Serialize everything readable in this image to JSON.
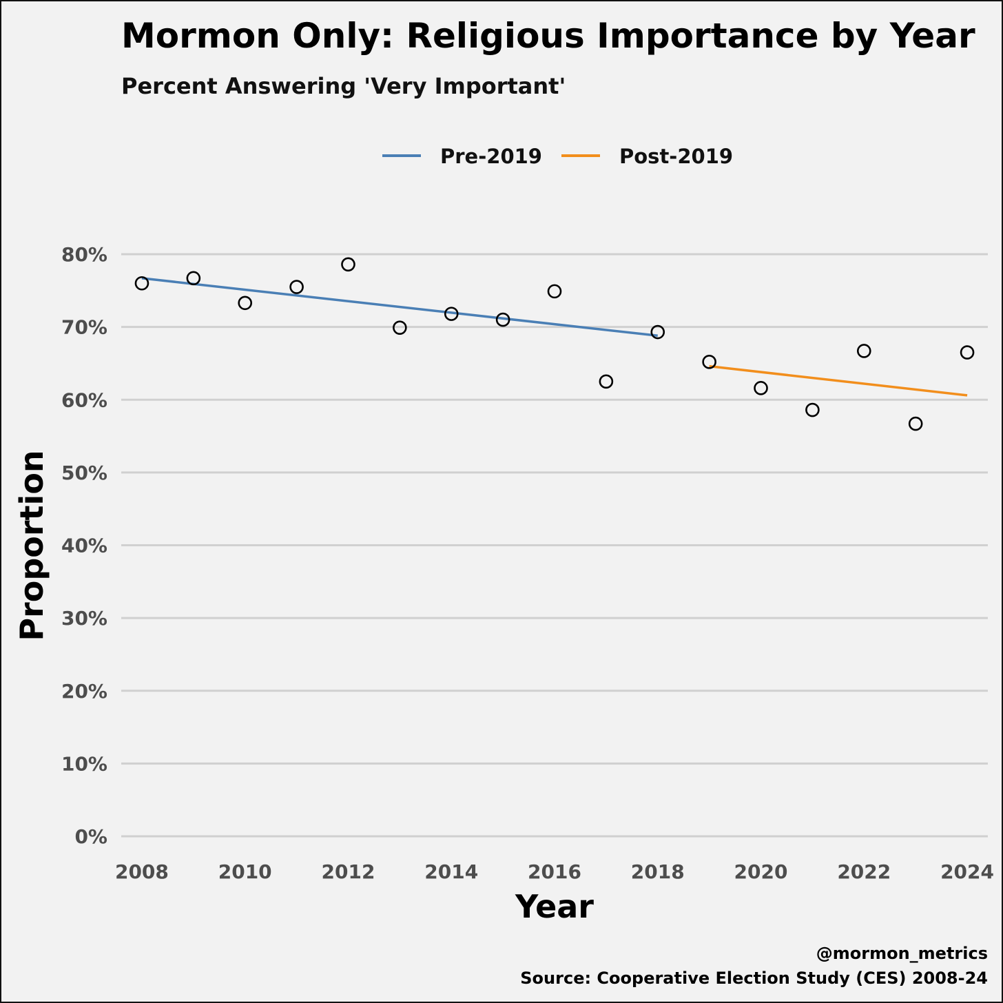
{
  "chart_data": {
    "type": "scatter",
    "title": "Mormon Only: Religious Importance by Year",
    "subtitle": "Percent Answering 'Very Important'",
    "xlabel": "Year",
    "ylabel": "Proportion",
    "xlim": [
      2007.6,
      2024.4
    ],
    "ylim": [
      0,
      0.8
    ],
    "x_ticks": [
      2008,
      2010,
      2012,
      2014,
      2016,
      2018,
      2020,
      2022,
      2024
    ],
    "y_ticks": [
      0,
      0.1,
      0.2,
      0.3,
      0.4,
      0.5,
      0.6,
      0.7,
      0.8
    ],
    "y_tick_labels": [
      "0%",
      "10%",
      "20%",
      "30%",
      "40%",
      "50%",
      "60%",
      "70%",
      "80%"
    ],
    "grid": true,
    "legend_position": "top",
    "points": [
      {
        "x": 2008,
        "y": 0.76
      },
      {
        "x": 2009,
        "y": 0.767
      },
      {
        "x": 2010,
        "y": 0.733
      },
      {
        "x": 2011,
        "y": 0.755
      },
      {
        "x": 2012,
        "y": 0.786
      },
      {
        "x": 2013,
        "y": 0.699
      },
      {
        "x": 2014,
        "y": 0.718
      },
      {
        "x": 2015,
        "y": 0.71
      },
      {
        "x": 2016,
        "y": 0.749
      },
      {
        "x": 2017,
        "y": 0.625
      },
      {
        "x": 2018,
        "y": 0.693
      },
      {
        "x": 2019,
        "y": 0.652
      },
      {
        "x": 2020,
        "y": 0.616
      },
      {
        "x": 2021,
        "y": 0.586
      },
      {
        "x": 2022,
        "y": 0.667
      },
      {
        "x": 2023,
        "y": 0.567
      },
      {
        "x": 2024,
        "y": 0.665
      }
    ],
    "series": [
      {
        "name": "Pre-2019",
        "color": "#4a7fb5",
        "x": [
          2008,
          2018
        ],
        "y": [
          0.767,
          0.688
        ]
      },
      {
        "name": "Post-2019",
        "color": "#f28e1c",
        "x": [
          2019,
          2024
        ],
        "y": [
          0.646,
          0.606
        ]
      }
    ]
  },
  "caption": {
    "handle": "@mormon_metrics",
    "source": "Source: Cooperative Election Study (CES) 2008-24"
  }
}
